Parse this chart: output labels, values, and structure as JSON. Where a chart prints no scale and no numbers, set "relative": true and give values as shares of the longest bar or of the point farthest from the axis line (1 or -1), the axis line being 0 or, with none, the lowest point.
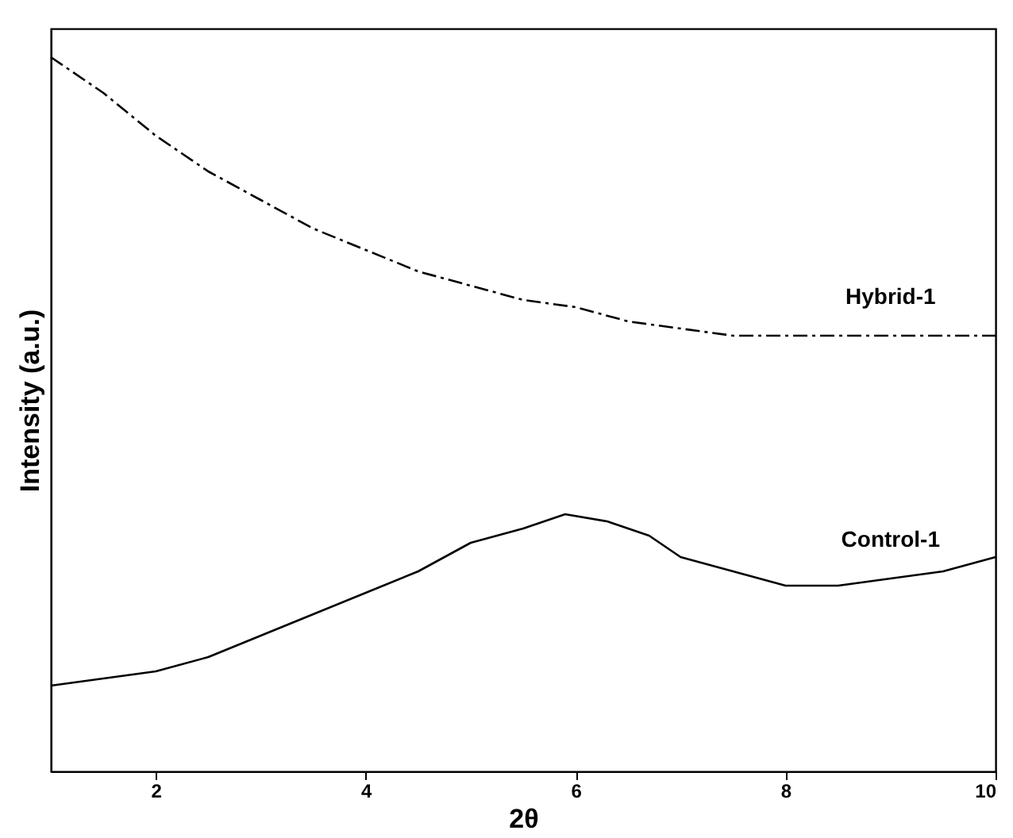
{
  "chart_data": {
    "type": "line",
    "relative": true,
    "xlabel": "2θ",
    "ylabel": "Intensity (a.u.)",
    "xlim": [
      1,
      10
    ],
    "xticks": [
      2,
      4,
      6,
      8,
      10
    ],
    "tick_labels": "x",
    "marker": "none",
    "legend": false,
    "grid": false,
    "x": [
      1,
      1.5,
      2,
      2.5,
      3,
      3.5,
      4,
      4.5,
      5,
      5.5,
      6,
      6.5,
      7,
      7.5,
      8,
      8.5,
      9,
      9.5,
      10
    ],
    "series": [
      {
        "name": "Hybrid-1",
        "color": "#000000",
        "line_style": "dashed",
        "values": [
          1.0,
          0.95,
          0.89,
          0.84,
          0.8,
          0.76,
          0.73,
          0.7,
          0.68,
          0.66,
          0.65,
          0.63,
          0.62,
          0.61,
          0.61,
          0.61,
          0.61,
          0.61,
          0.61
        ]
      },
      {
        "name": "Control-1",
        "color": "#000000",
        "line_style": "solid",
        "x": [
          1,
          1.5,
          2,
          2.5,
          3,
          3.5,
          4,
          4.5,
          5,
          5.5,
          5.9,
          6.3,
          6.7,
          7,
          7.5,
          8,
          8.5,
          9,
          9.5,
          10
        ],
        "values": [
          0.12,
          0.13,
          0.14,
          0.16,
          0.19,
          0.22,
          0.25,
          0.28,
          0.32,
          0.34,
          0.36,
          0.35,
          0.33,
          0.3,
          0.28,
          0.26,
          0.26,
          0.27,
          0.28,
          0.3
        ]
      }
    ]
  }
}
